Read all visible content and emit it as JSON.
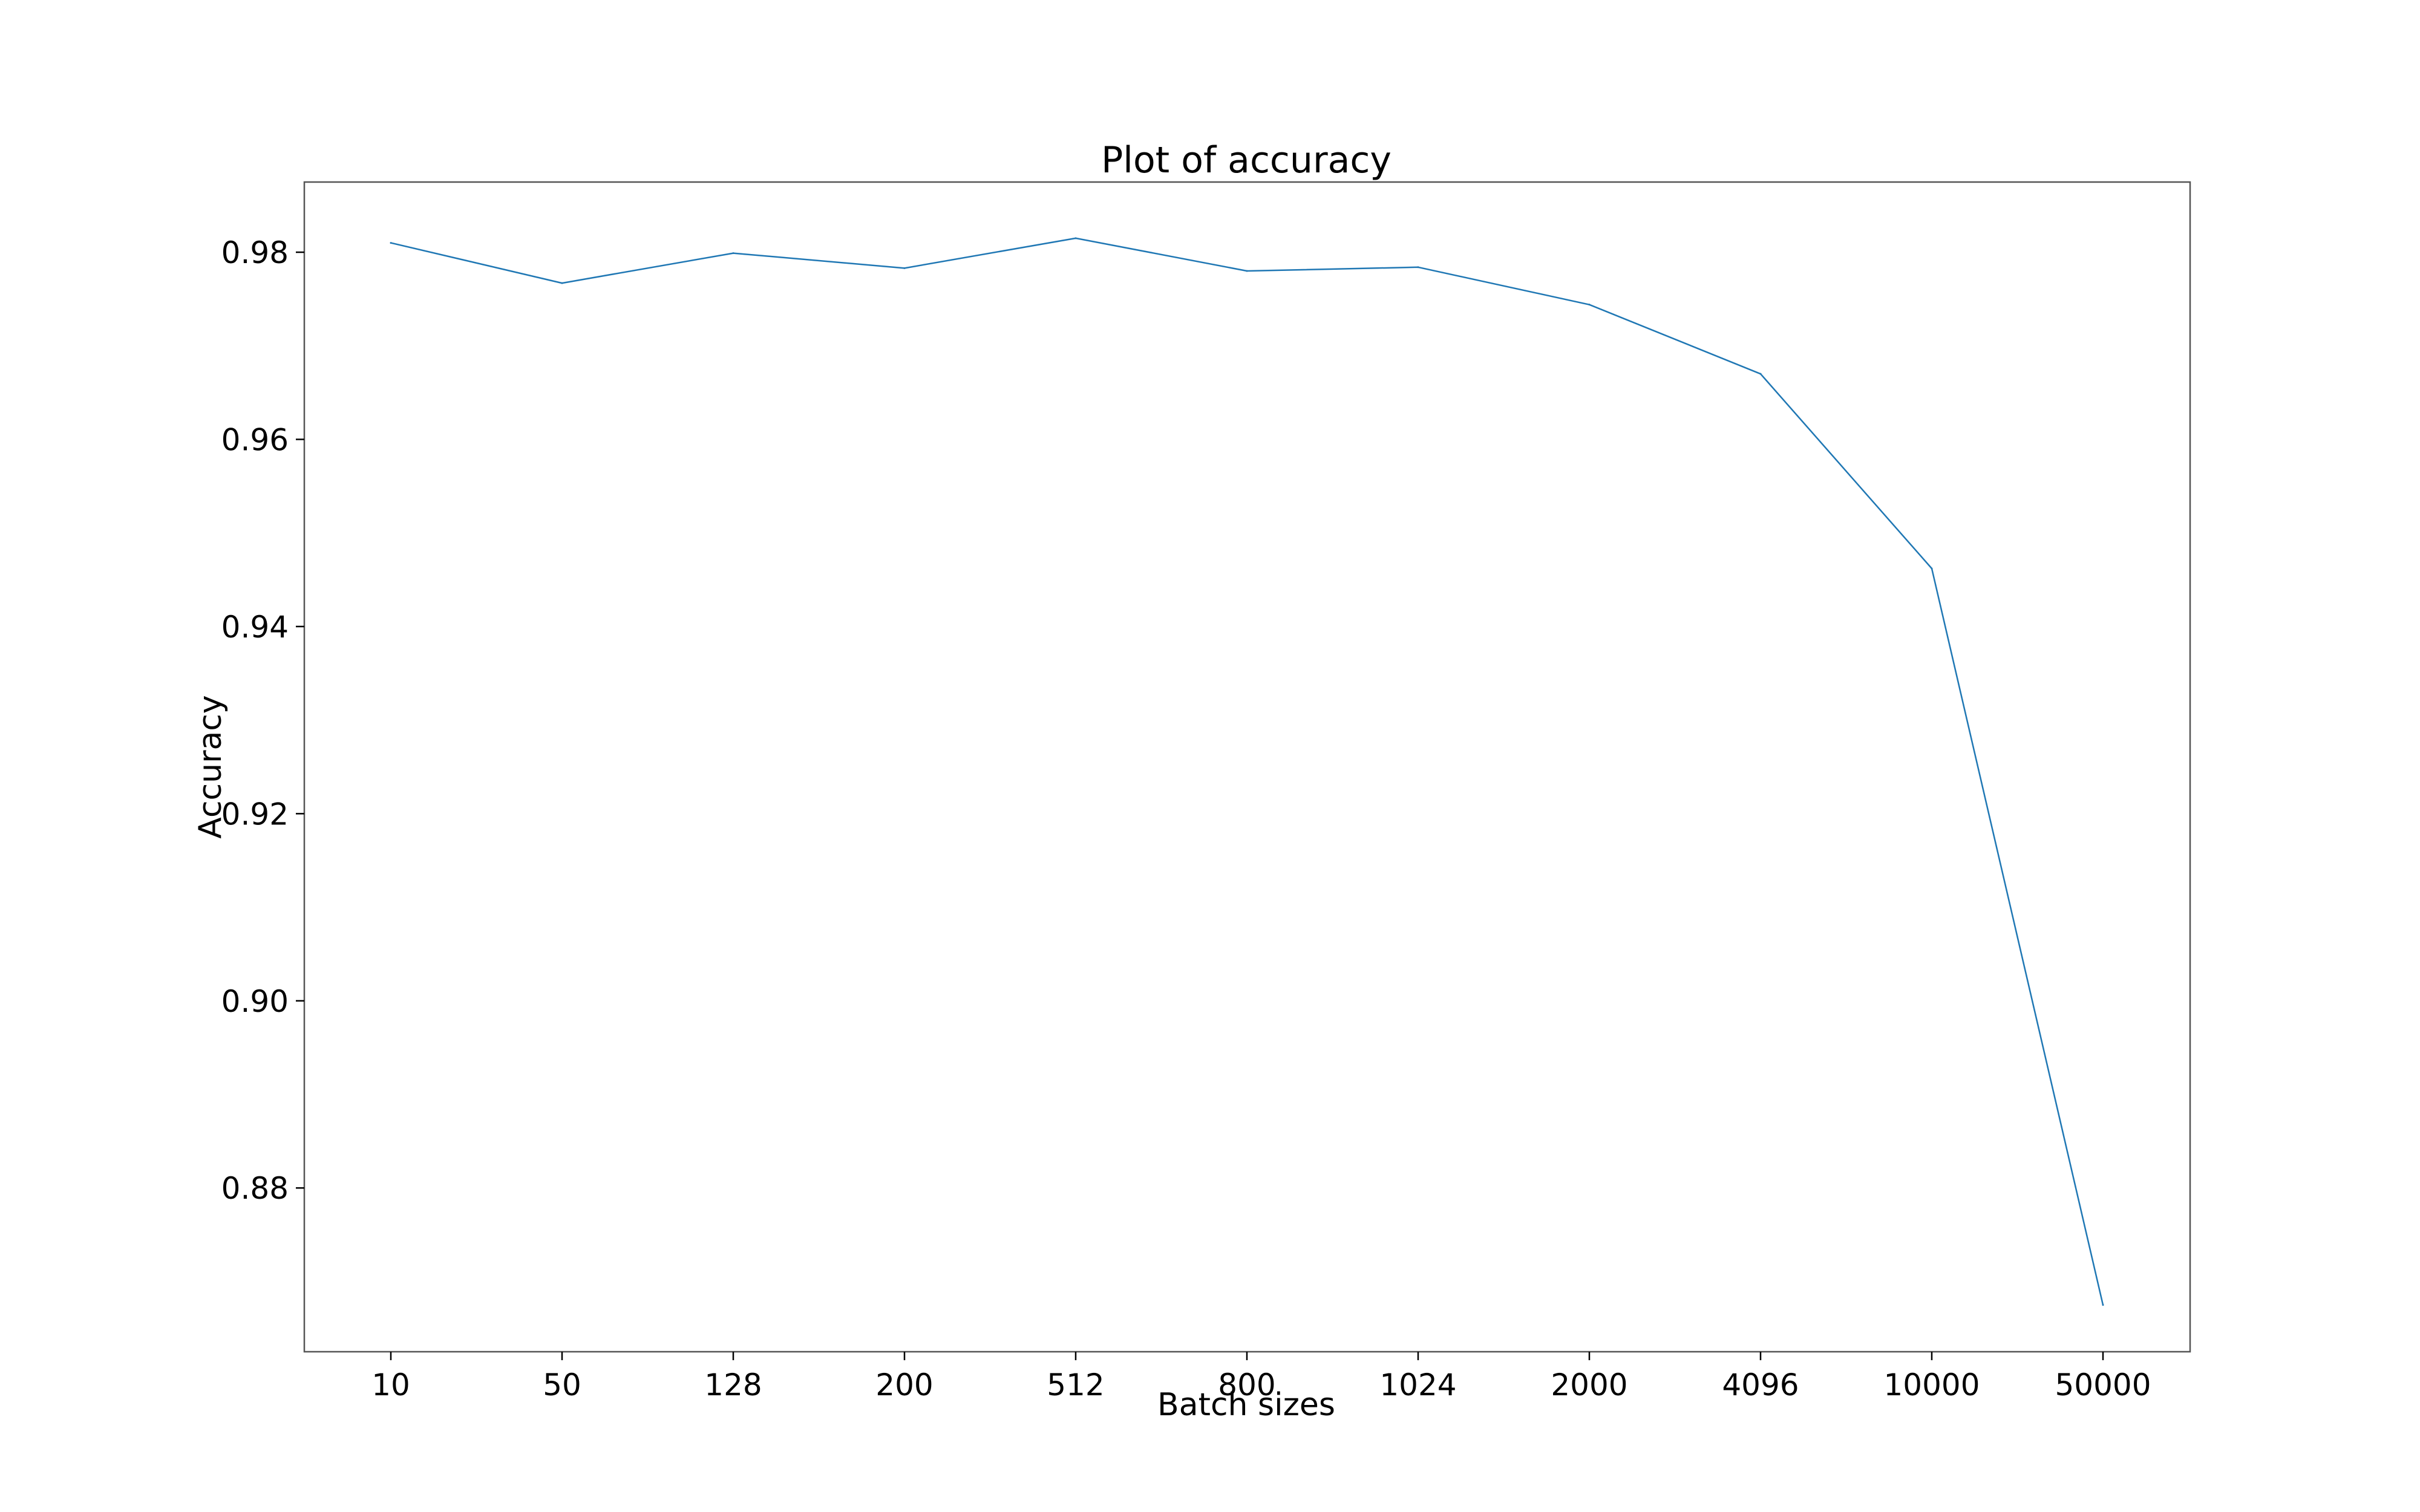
{
  "chart_data": {
    "type": "line",
    "title": "Plot of accuracy",
    "xlabel": "Batch sizes",
    "ylabel": "Accuracy",
    "categories": [
      "10",
      "50",
      "128",
      "200",
      "512",
      "800",
      "1024",
      "2000",
      "4096",
      "10000",
      "50000"
    ],
    "series": [
      {
        "values": [
          0.981,
          0.9767,
          0.9799,
          0.9783,
          0.9815,
          0.978,
          0.9784,
          0.9744,
          0.967,
          0.9462,
          0.8675
        ],
        "color": "#1f77b4"
      }
    ],
    "yticks": [
      "0.88",
      "0.90",
      "0.92",
      "0.94",
      "0.96",
      "0.98"
    ],
    "ylim": [
      0.8625,
      0.9875
    ],
    "grid": false,
    "legend": "none"
  }
}
